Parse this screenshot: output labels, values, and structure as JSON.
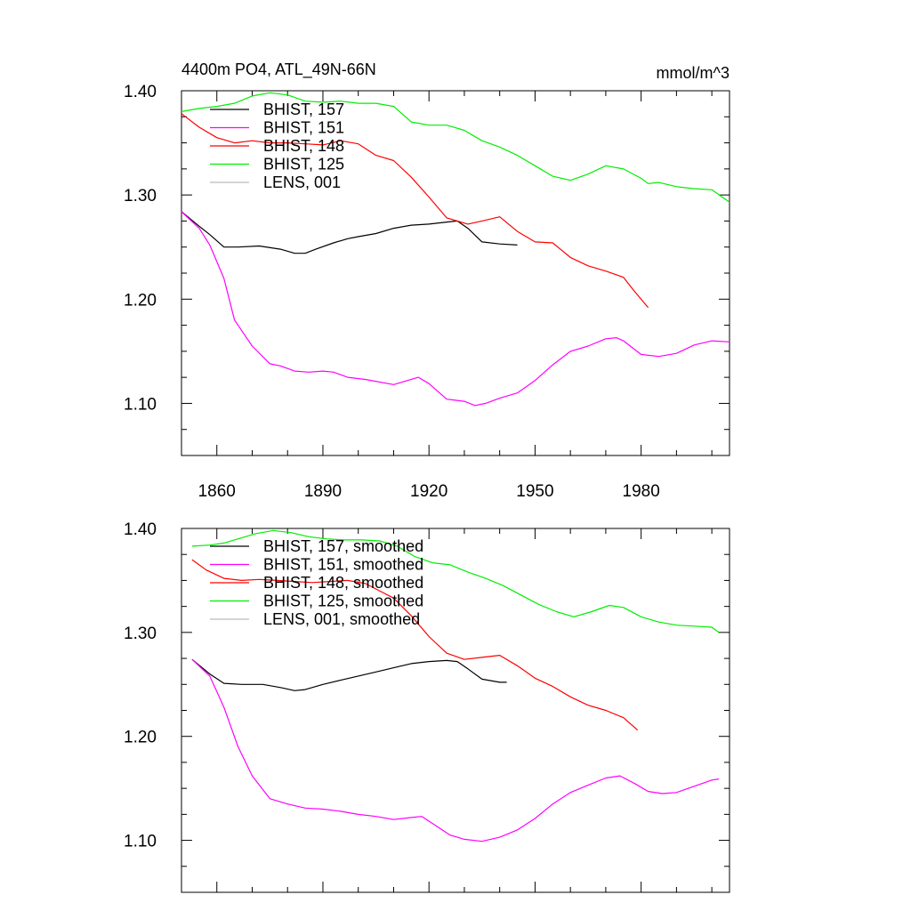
{
  "chart_data": [
    {
      "type": "line",
      "id": "raw",
      "title": "4400m PO4, ATL_49N-66N",
      "units": "mmol/m^3",
      "xlabel": "",
      "ylabel": "",
      "xlim": [
        1850,
        2005
      ],
      "ylim": [
        1.05,
        1.4
      ],
      "xtick_values": [
        1860,
        1890,
        1920,
        1950,
        1980
      ],
      "xtick_labels": [
        "1860",
        "1890",
        "1920",
        "1950",
        "1980"
      ],
      "ytick_values": [
        1.1,
        1.2,
        1.3,
        1.4
      ],
      "ytick_labels": [
        "1.10",
        "1.20",
        "1.30",
        "1.40"
      ],
      "legend_position": "top-left",
      "series": [
        {
          "name": "BHIST, 157",
          "color": "#000000",
          "x": [
            1850,
            1855,
            1858,
            1862,
            1866,
            1872,
            1878,
            1882,
            1885,
            1888,
            1893,
            1897,
            1900,
            1905,
            1910,
            1915,
            1920,
            1925,
            1928,
            1931,
            1935,
            1940,
            1945
          ],
          "y": [
            1.284,
            1.27,
            1.262,
            1.25,
            1.25,
            1.251,
            1.248,
            1.244,
            1.244,
            1.248,
            1.254,
            1.258,
            1.26,
            1.263,
            1.268,
            1.271,
            1.272,
            1.274,
            1.275,
            1.268,
            1.255,
            1.253,
            1.252
          ]
        },
        {
          "name": "BHIST, 151",
          "color": "#ff00ff",
          "x": [
            1850,
            1855,
            1858,
            1862,
            1865,
            1870,
            1875,
            1878,
            1882,
            1886,
            1890,
            1893,
            1897,
            1902,
            1910,
            1917,
            1920,
            1925,
            1930,
            1933,
            1936,
            1940,
            1945,
            1950,
            1955,
            1960,
            1965,
            1970,
            1973,
            1975,
            1980,
            1985,
            1990,
            1995,
            2000,
            2005
          ],
          "y": [
            1.284,
            1.268,
            1.252,
            1.22,
            1.18,
            1.155,
            1.138,
            1.136,
            1.131,
            1.13,
            1.131,
            1.13,
            1.125,
            1.123,
            1.118,
            1.125,
            1.119,
            1.104,
            1.102,
            1.098,
            1.1,
            1.105,
            1.11,
            1.122,
            1.137,
            1.15,
            1.155,
            1.162,
            1.163,
            1.16,
            1.147,
            1.145,
            1.148,
            1.156,
            1.16,
            1.159
          ]
        },
        {
          "name": "BHIST, 148",
          "color": "#ff0000",
          "x": [
            1850,
            1855,
            1860,
            1865,
            1870,
            1875,
            1880,
            1885,
            1890,
            1895,
            1900,
            1905,
            1910,
            1915,
            1920,
            1925,
            1928,
            1931,
            1935,
            1940,
            1945,
            1950,
            1955,
            1960,
            1965,
            1970,
            1975,
            1978,
            1982
          ],
          "y": [
            1.378,
            1.365,
            1.355,
            1.35,
            1.352,
            1.35,
            1.35,
            1.349,
            1.348,
            1.352,
            1.349,
            1.338,
            1.333,
            1.317,
            1.298,
            1.278,
            1.275,
            1.272,
            1.275,
            1.279,
            1.265,
            1.255,
            1.254,
            1.24,
            1.232,
            1.227,
            1.221,
            1.208,
            1.192
          ]
        },
        {
          "name": "BHIST, 125",
          "color": "#00ee00",
          "x": [
            1850,
            1855,
            1860,
            1865,
            1870,
            1875,
            1880,
            1885,
            1890,
            1895,
            1900,
            1905,
            1910,
            1915,
            1920,
            1925,
            1930,
            1935,
            1940,
            1945,
            1950,
            1955,
            1960,
            1965,
            1970,
            1975,
            1980,
            1982,
            1985,
            1990,
            1995,
            2000,
            2005
          ],
          "y": [
            1.38,
            1.383,
            1.385,
            1.388,
            1.395,
            1.398,
            1.396,
            1.39,
            1.389,
            1.39,
            1.388,
            1.388,
            1.385,
            1.37,
            1.367,
            1.367,
            1.362,
            1.352,
            1.346,
            1.338,
            1.328,
            1.318,
            1.314,
            1.32,
            1.328,
            1.325,
            1.316,
            1.311,
            1.312,
            1.308,
            1.306,
            1.305,
            1.293
          ]
        },
        {
          "name": "LENS, 001",
          "color": "#bbbbbb",
          "x": [],
          "y": []
        }
      ]
    },
    {
      "type": "line",
      "id": "smoothed",
      "title": "",
      "xlabel": "",
      "ylabel": "",
      "xlim": [
        1850,
        2005
      ],
      "ylim": [
        1.05,
        1.4
      ],
      "xtick_values": [
        1860,
        1890,
        1920,
        1950,
        1980
      ],
      "xtick_labels": [],
      "ytick_values": [
        1.1,
        1.2,
        1.3,
        1.4
      ],
      "ytick_labels": [
        "1.10",
        "1.20",
        "1.30",
        "1.40"
      ],
      "legend_position": "top-left",
      "series": [
        {
          "name": "BHIST, 157, smoothed",
          "color": "#000000",
          "x": [
            1853,
            1858,
            1862,
            1867,
            1873,
            1878,
            1882,
            1885,
            1890,
            1895,
            1900,
            1905,
            1910,
            1915,
            1920,
            1925,
            1928,
            1931,
            1935,
            1940,
            1942
          ],
          "y": [
            1.274,
            1.26,
            1.251,
            1.25,
            1.25,
            1.247,
            1.244,
            1.245,
            1.25,
            1.254,
            1.258,
            1.262,
            1.266,
            1.27,
            1.272,
            1.273,
            1.272,
            1.265,
            1.255,
            1.252,
            1.252
          ]
        },
        {
          "name": "BHIST, 151, smoothed",
          "color": "#ff00ff",
          "x": [
            1853,
            1858,
            1862,
            1866,
            1870,
            1875,
            1880,
            1885,
            1890,
            1895,
            1900,
            1905,
            1910,
            1915,
            1918,
            1922,
            1926,
            1930,
            1935,
            1940,
            1945,
            1950,
            1955,
            1960,
            1965,
            1970,
            1974,
            1978,
            1982,
            1986,
            1990,
            1995,
            2000,
            2002
          ],
          "y": [
            1.274,
            1.258,
            1.228,
            1.19,
            1.162,
            1.14,
            1.135,
            1.131,
            1.13,
            1.128,
            1.125,
            1.123,
            1.12,
            1.122,
            1.123,
            1.114,
            1.105,
            1.101,
            1.099,
            1.103,
            1.11,
            1.121,
            1.135,
            1.146,
            1.153,
            1.16,
            1.162,
            1.155,
            1.147,
            1.145,
            1.146,
            1.152,
            1.158,
            1.159
          ]
        },
        {
          "name": "BHIST, 148, smoothed",
          "color": "#ff0000",
          "x": [
            1853,
            1857,
            1862,
            1867,
            1872,
            1877,
            1882,
            1887,
            1892,
            1897,
            1902,
            1906,
            1910,
            1915,
            1920,
            1925,
            1930,
            1935,
            1940,
            1945,
            1950,
            1955,
            1960,
            1965,
            1970,
            1975,
            1979
          ],
          "y": [
            1.37,
            1.36,
            1.352,
            1.35,
            1.351,
            1.35,
            1.349,
            1.348,
            1.349,
            1.35,
            1.347,
            1.34,
            1.333,
            1.316,
            1.296,
            1.28,
            1.274,
            1.276,
            1.278,
            1.268,
            1.256,
            1.248,
            1.238,
            1.23,
            1.225,
            1.218,
            1.206
          ]
        },
        {
          "name": "BHIST, 125, smoothed",
          "color": "#00ee00",
          "x": [
            1853,
            1858,
            1862,
            1866,
            1871,
            1876,
            1881,
            1886,
            1891,
            1896,
            1901,
            1906,
            1911,
            1916,
            1921,
            1926,
            1931,
            1936,
            1941,
            1946,
            1951,
            1956,
            1961,
            1966,
            1971,
            1975,
            1980,
            1985,
            1990,
            1995,
            2000,
            2002
          ],
          "y": [
            1.383,
            1.384,
            1.386,
            1.39,
            1.395,
            1.398,
            1.396,
            1.392,
            1.39,
            1.389,
            1.389,
            1.388,
            1.383,
            1.373,
            1.367,
            1.365,
            1.358,
            1.352,
            1.345,
            1.336,
            1.327,
            1.32,
            1.315,
            1.32,
            1.326,
            1.324,
            1.315,
            1.31,
            1.307,
            1.306,
            1.305,
            1.3
          ]
        },
        {
          "name": "LENS, 001, smoothed",
          "color": "#bbbbbb",
          "x": [],
          "y": []
        }
      ]
    }
  ]
}
